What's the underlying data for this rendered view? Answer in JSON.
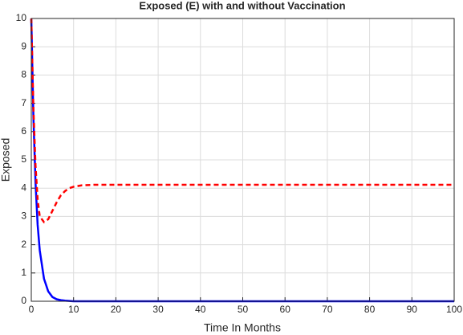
{
  "chart_data": {
    "type": "line",
    "title": "Exposed (E) with and without Vaccination",
    "x_label": "Time In Months",
    "y_label": "Exposed",
    "x": [
      0,
      0.5,
      1,
      1.5,
      2,
      3,
      4,
      5,
      6,
      7,
      8,
      9,
      10,
      12,
      15,
      20,
      30,
      40,
      50,
      60,
      70,
      80,
      90,
      100
    ],
    "series": [
      {
        "color": "#0000ff",
        "dash": "solid",
        "values": [
          10,
          6.5,
          4.2,
          2.7,
          1.8,
          0.8,
          0.35,
          0.15,
          0.07,
          0.04,
          0.02,
          0.01,
          0,
          0,
          0,
          0,
          0,
          0,
          0,
          0,
          0,
          0,
          0,
          0
        ]
      },
      {
        "color": "#ff0000",
        "dash": "dashed",
        "values": [
          10,
          6.8,
          4.8,
          3.6,
          3.0,
          2.8,
          2.9,
          3.2,
          3.5,
          3.75,
          3.9,
          4.0,
          4.05,
          4.1,
          4.12,
          4.12,
          4.12,
          4.12,
          4.12,
          4.12,
          4.12,
          4.12,
          4.12,
          4.12
        ]
      }
    ],
    "xlim": [
      0,
      100
    ],
    "xticks": [
      0,
      10,
      20,
      30,
      40,
      50,
      60,
      70,
      80,
      90,
      100
    ],
    "ylim": [
      0,
      10
    ],
    "yticks": [
      0,
      1,
      2,
      3,
      4,
      5,
      6,
      7,
      8,
      9,
      10
    ],
    "grid": true
  }
}
